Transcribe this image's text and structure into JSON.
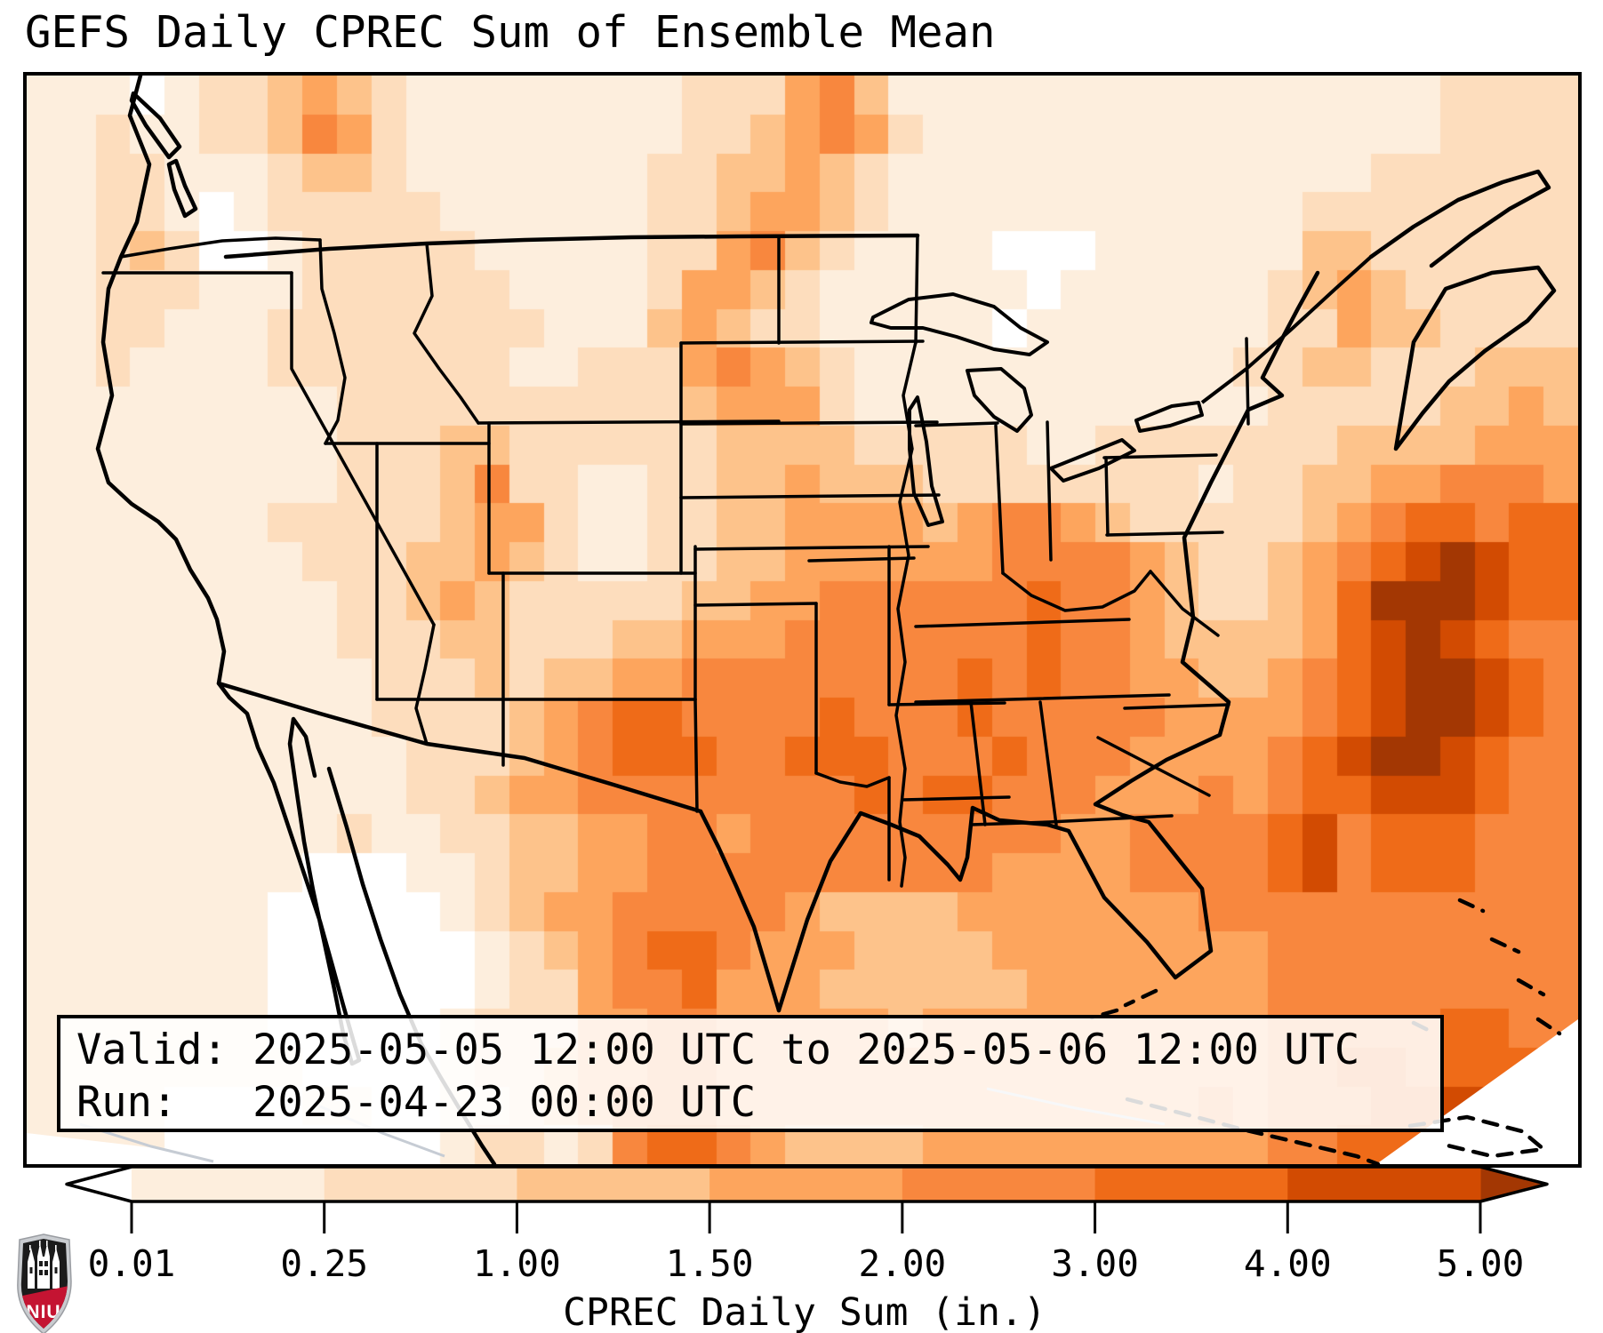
{
  "header": {
    "title": "GEFS Daily CPREC Sum of Ensemble Mean"
  },
  "info_box": {
    "valid_line": "Valid: 2025-05-05 12:00 UTC to 2025-05-06 12:00 UTC",
    "run_line": "Run:   2025-04-23 00:00 UTC"
  },
  "colorbar": {
    "label": "CPREC Daily Sum (in.)",
    "ticks": [
      "0.01",
      "0.25",
      "1.00",
      "1.50",
      "2.00",
      "3.00",
      "4.00",
      "5.00"
    ],
    "segment_colors": [
      "#fdeedd",
      "#fdddbd",
      "#fdc38b",
      "#fda55d",
      "#f8873e",
      "#ef6b18",
      "#d24b02"
    ],
    "under_color": "#ffffff",
    "over_color": "#a33703",
    "outline_color": "#000000"
  },
  "logo": {
    "text": "NIU",
    "field_color": "#1b1b1b",
    "band_color": "#c41432",
    "border_color": "#9a9da2",
    "border_fill": "#c9ccd0"
  },
  "map": {
    "cols": 45,
    "rows": 28,
    "palette": [
      "#ffffff",
      "#fdeedd",
      "#fdddbd",
      "#fdc38b",
      "#fda55d",
      "#f8873e",
      "#ef6b18",
      "#d24b02",
      "#a33703"
    ],
    "levels_in": [
      "<0.01",
      "0.01-0.25",
      "0.25-1.00",
      "1.00-1.50",
      "1.50-2.00",
      "2.00-3.00",
      "3.00-4.00",
      "4.00-5.00",
      ">5.00"
    ],
    "grid": [
      "11101 22343 21111 11112 22453 11111 11111 11111 12222",
      "11211 22354 21111 11112 23454 21111 11111 11111 12222",
      "11221 11233 21111 11122 33432 11111 11111 11112 22222",
      "11221 01222 22111 11122 34432 11111 11111 11222 22222",
      "11232 00122 22211 11122 45321 11100 01111 11332 22222",
      "11222 11122 22221 11124 43211 11110 11111 12343 22222",
      "11221 11222 22222 11134 32211 11101 11111 12243 32222",
      "11211 11222 22221 12224 54321 11111 11111 22332 22333",
      "11111 11112 22222 22223 44421 11111 11111 12222 23343",
      "11111 11112 22332 22222 33332 22221 12222 22233 33444",
      "11111 11112 22352 21122 33433 32222 22221 22334 45554",
      "11111 11222 22344 21122 33444 43455 43222 22345 66566",
      "11111 11122 23343 21122 33444 44455 55432 23456 78766",
      "11111 11112 23432 22223 34455 55556 55432 23468 88766",
      "11111 11112 22332 22334 44555 55556 55433 33467 87655",
      "11111 11111 22232 33445 55555 55656 55443 34567 88765",
      "11111 11111 22223 45665 55565 55655 55544 44567 88765",
      "11111 11111 12223 45666 55666 55565 55444 45678 87655",
      "11111 11111 12234 45555 55556 56655 54445 45667 77655",
      "11111 11112 11223 34455 45555 55555 44555 56756 66555",
      "11111 11100 01123 34455 55555 55544 44555 56756 66555",
      "11111 11000 00123 44555 55433 33444 44445 55555 55555",
      "11111 11000 00012 34566 54443 33344 44444 45555 55555",
      "11111 11000 00012 24556 44433 33334 44444 45555 55555",
      "11111 11000 00122 24455 44444 34444 44444 45555 56655",
      "11111 11100 00122 34455 44444 44444 44444 45566 56660",
      "11110 00011 00112 34555 44444 44444 44445 45556 67760",
      "11110 00000 00122 12566 54333 34444 44444 45566 67700"
    ]
  }
}
